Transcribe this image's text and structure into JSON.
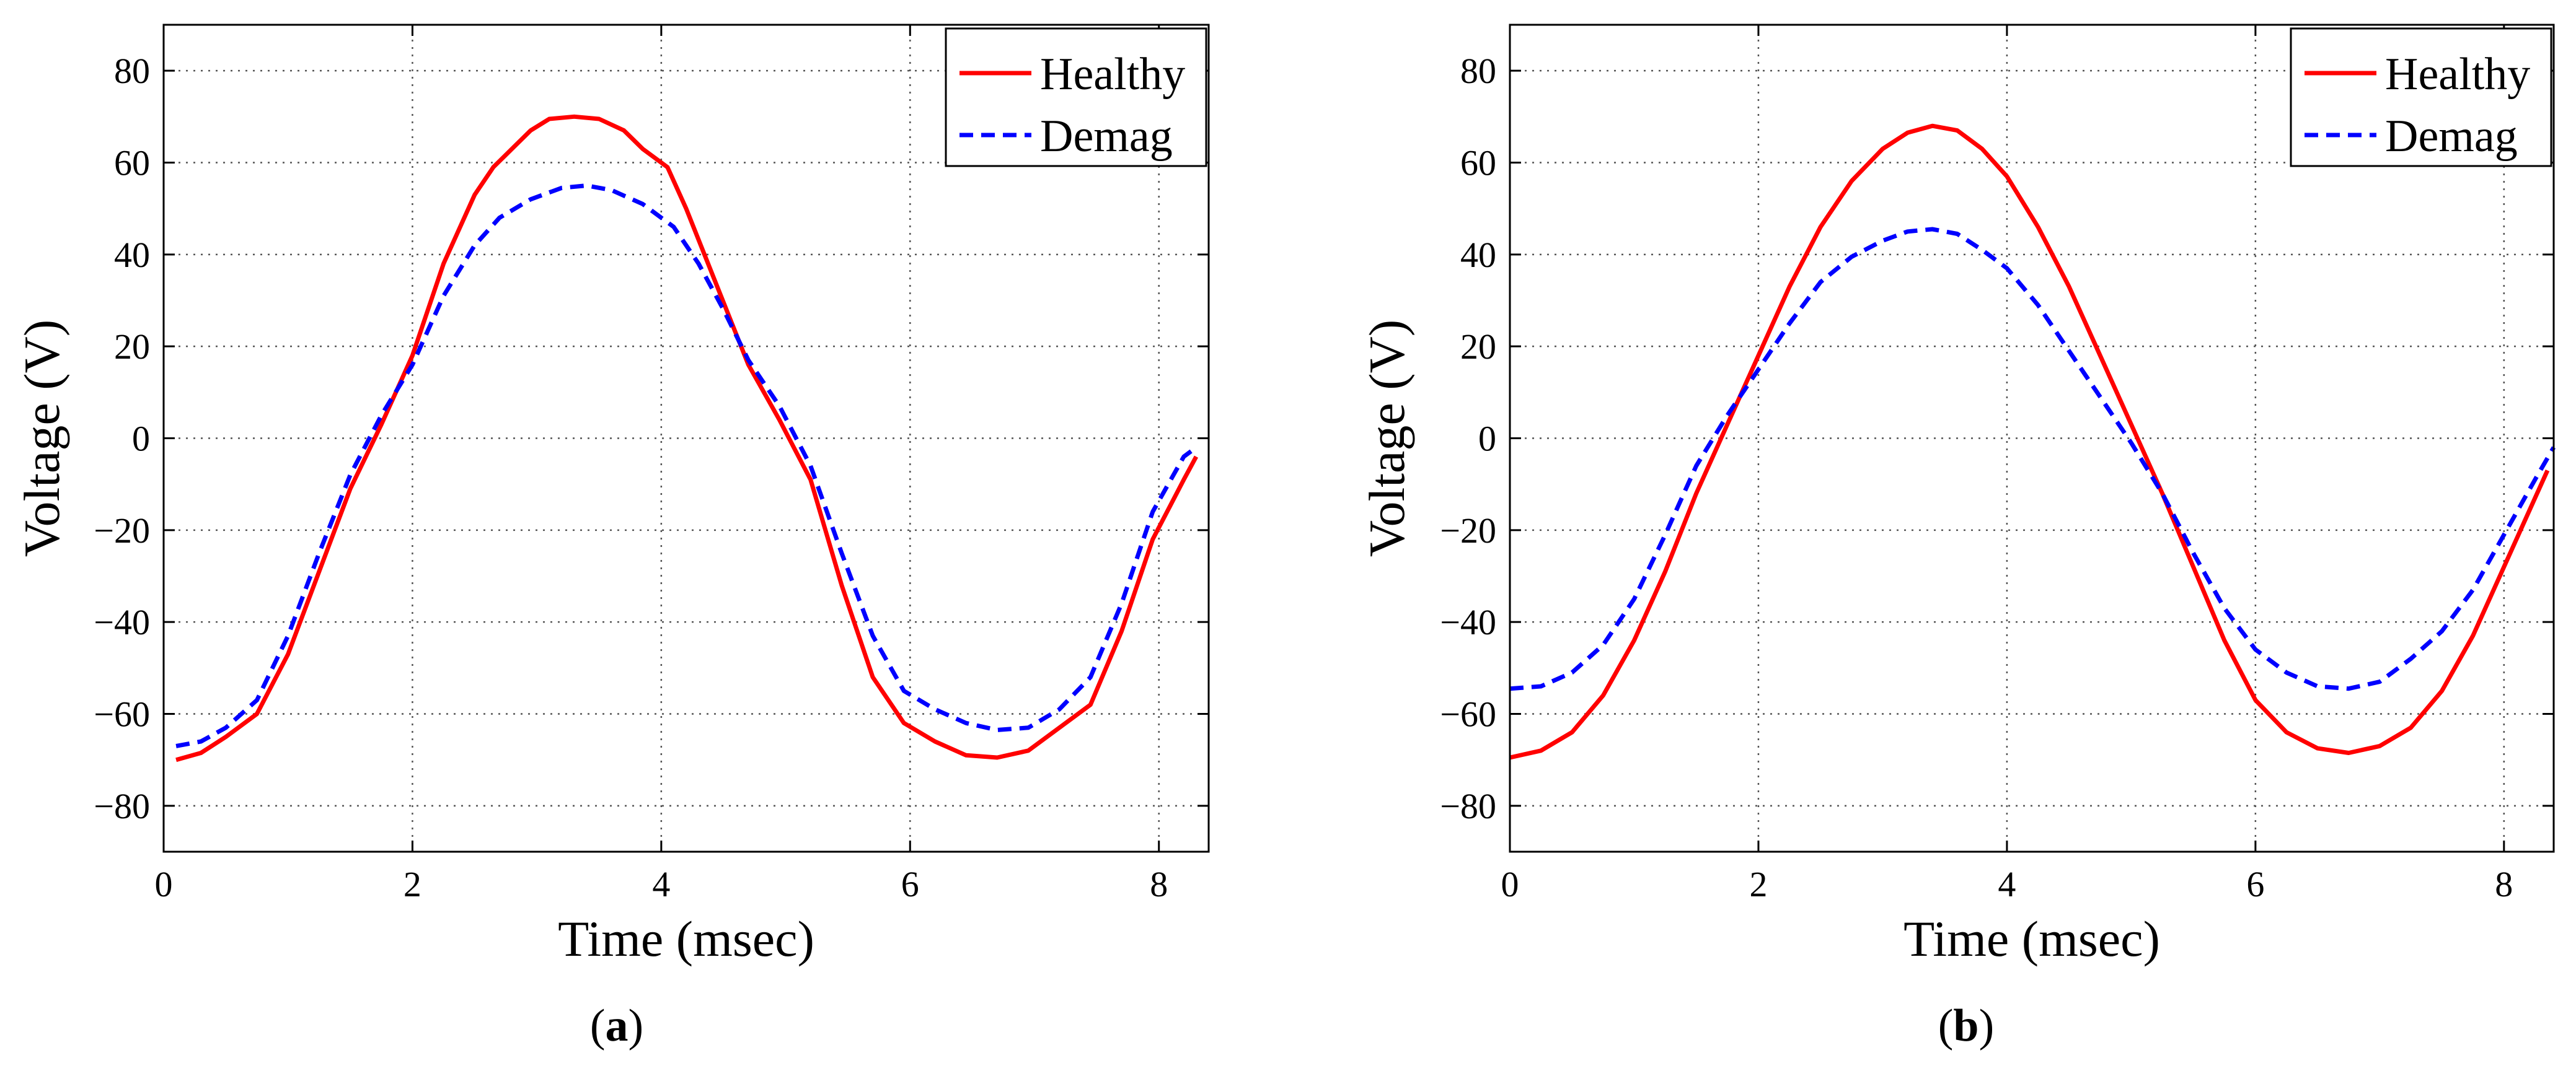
{
  "chart_data": [
    {
      "type": "line",
      "panel_label": "(a)",
      "panel_letter": "a",
      "xlabel": "Time (msec)",
      "ylabel": "Voltage (V)",
      "xlim": [
        0,
        8.4
      ],
      "ylim": [
        -90,
        90
      ],
      "xticks": [
        0,
        2,
        4,
        6,
        8
      ],
      "yticks": [
        -80,
        -60,
        -40,
        -20,
        0,
        20,
        40,
        60,
        80
      ],
      "grid": true,
      "legend": "top-right",
      "series": [
        {
          "name": "Healthy",
          "color": "#ff0000",
          "style": "solid",
          "x": [
            0.1,
            0.3,
            0.5,
            0.75,
            1.0,
            1.25,
            1.5,
            1.75,
            2.0,
            2.25,
            2.5,
            2.65,
            2.8,
            2.95,
            3.1,
            3.3,
            3.5,
            3.7,
            3.85,
            4.05,
            4.2,
            4.45,
            4.7,
            4.95,
            5.2,
            5.45,
            5.7,
            5.95,
            6.2,
            6.45,
            6.7,
            6.95,
            7.2,
            7.45,
            7.7,
            7.95,
            8.2,
            8.3
          ],
          "y": [
            -70,
            -68.5,
            -65,
            -60,
            -47,
            -29,
            -11,
            3,
            18,
            38,
            53,
            59,
            63,
            67,
            69.5,
            70,
            69.5,
            67,
            63,
            59,
            50,
            33,
            16,
            4,
            -9,
            -32,
            -52,
            -62,
            -66,
            -69,
            -69.5,
            -68,
            -63,
            -58,
            -42,
            -22,
            -9,
            -4
          ]
        },
        {
          "name": "Demag",
          "color": "#0000ff",
          "style": "dashed",
          "x": [
            0.1,
            0.3,
            0.5,
            0.75,
            1.0,
            1.25,
            1.5,
            1.75,
            2.0,
            2.25,
            2.5,
            2.7,
            2.95,
            3.2,
            3.4,
            3.6,
            3.85,
            4.1,
            4.3,
            4.5,
            4.7,
            4.95,
            5.2,
            5.45,
            5.7,
            5.95,
            6.2,
            6.45,
            6.7,
            6.95,
            7.2,
            7.45,
            7.7,
            7.95,
            8.2,
            8.3
          ],
          "y": [
            -67,
            -66,
            -63,
            -57,
            -43,
            -25,
            -8,
            5,
            16,
            31,
            42,
            48,
            52,
            54.5,
            55,
            54,
            51,
            46,
            38,
            28,
            17,
            7,
            -6,
            -25,
            -43,
            -55,
            -59,
            -62,
            -63.5,
            -63,
            -59,
            -52,
            -36,
            -16,
            -4,
            -2
          ]
        }
      ]
    },
    {
      "type": "line",
      "panel_label": "(b)",
      "panel_letter": "b",
      "xlabel": "Time (msec)",
      "ylabel": "Voltage (V)",
      "xlim": [
        0,
        8.4
      ],
      "ylim": [
        -90,
        90
      ],
      "xticks": [
        0,
        2,
        4,
        6,
        8
      ],
      "yticks": [
        -80,
        -60,
        -40,
        -20,
        0,
        20,
        40,
        60,
        80
      ],
      "grid": true,
      "legend": "top-right",
      "series": [
        {
          "name": "Healthy",
          "color": "#ff0000",
          "style": "solid",
          "x": [
            0.0,
            0.25,
            0.5,
            0.75,
            1.0,
            1.25,
            1.5,
            1.75,
            2.0,
            2.25,
            2.5,
            2.75,
            3.0,
            3.2,
            3.4,
            3.6,
            3.8,
            4.0,
            4.25,
            4.5,
            4.75,
            5.0,
            5.25,
            5.5,
            5.75,
            6.0,
            6.25,
            6.5,
            6.75,
            7.0,
            7.25,
            7.5,
            7.75,
            8.0,
            8.25,
            8.35
          ],
          "y": [
            -69.5,
            -68,
            -64,
            -56,
            -44,
            -29,
            -12,
            3,
            18,
            33,
            46,
            56,
            63,
            66.5,
            68,
            67,
            63,
            57,
            46,
            33,
            18,
            3,
            -12,
            -28,
            -44,
            -57,
            -64,
            -67.5,
            -68.5,
            -67,
            -63,
            -55,
            -43,
            -28,
            -13,
            -7
          ]
        },
        {
          "name": "Demag",
          "color": "#0000ff",
          "style": "dashed",
          "x": [
            0.0,
            0.25,
            0.5,
            0.75,
            1.0,
            1.25,
            1.5,
            1.75,
            2.0,
            2.25,
            2.5,
            2.75,
            3.0,
            3.2,
            3.4,
            3.6,
            3.8,
            4.0,
            4.25,
            4.5,
            4.75,
            5.0,
            5.25,
            5.5,
            5.75,
            6.0,
            6.25,
            6.5,
            6.75,
            7.0,
            7.25,
            7.5,
            7.75,
            8.0,
            8.25,
            8.4
          ],
          "y": [
            -54.5,
            -54,
            -51,
            -45,
            -35,
            -21,
            -6,
            5,
            15,
            25,
            34,
            39.5,
            43,
            45,
            45.5,
            44.5,
            41,
            37,
            29,
            19,
            9,
            -1,
            -12,
            -25,
            -37,
            -46,
            -51,
            -54,
            -54.5,
            -53,
            -48,
            -42,
            -33,
            -21,
            -9,
            -2
          ]
        }
      ]
    }
  ]
}
